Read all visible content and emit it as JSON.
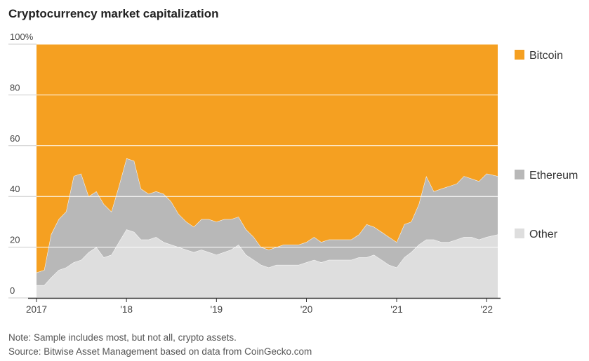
{
  "title": "Cryptocurrency market capitalization",
  "note": "Note: Sample includes most, but not all, crypto assets.",
  "source": "Source: Bitwise Asset Management based on data from CoinGecko.com",
  "colors": {
    "bitcoin": "#f5a021",
    "ethereum": "#b8b8b8",
    "other": "#dedede",
    "axis": "#333333",
    "grid": "#ffffff"
  },
  "chart_data": {
    "type": "area",
    "stacked": true,
    "percent": true,
    "ylim": [
      0,
      100
    ],
    "yticks": [
      0,
      20,
      40,
      60,
      80,
      100
    ],
    "ytick_labels": [
      "0",
      "20",
      "40",
      "60",
      "80",
      "100%"
    ],
    "xlim": [
      "2017-01-01",
      "2022-02-15"
    ],
    "xticks": [
      "2017-01-01",
      "2018-01-01",
      "2019-01-01",
      "2020-01-01",
      "2021-01-01",
      "2022-01-01"
    ],
    "xtick_labels": [
      "2017",
      "'18",
      "'19",
      "'20",
      "'21",
      "'22"
    ],
    "legend_placement": "right",
    "x": [
      "2017-01",
      "2017-02",
      "2017-03",
      "2017-04",
      "2017-05",
      "2017-06",
      "2017-07",
      "2017-08",
      "2017-09",
      "2017-10",
      "2017-11",
      "2017-12",
      "2018-01",
      "2018-02",
      "2018-03",
      "2018-04",
      "2018-05",
      "2018-06",
      "2018-07",
      "2018-08",
      "2018-09",
      "2018-10",
      "2018-11",
      "2018-12",
      "2019-01",
      "2019-02",
      "2019-03",
      "2019-04",
      "2019-05",
      "2019-06",
      "2019-07",
      "2019-08",
      "2019-09",
      "2019-10",
      "2019-11",
      "2019-12",
      "2020-01",
      "2020-02",
      "2020-03",
      "2020-04",
      "2020-05",
      "2020-06",
      "2020-07",
      "2020-08",
      "2020-09",
      "2020-10",
      "2020-11",
      "2020-12",
      "2021-01",
      "2021-02",
      "2021-03",
      "2021-04",
      "2021-05",
      "2021-06",
      "2021-07",
      "2021-08",
      "2021-09",
      "2021-10",
      "2021-11",
      "2021-12",
      "2022-01",
      "2022-02"
    ],
    "series": [
      {
        "name": "Other",
        "values": [
          5,
          5,
          8,
          11,
          12,
          14,
          15,
          18,
          20,
          16,
          17,
          22,
          27,
          26,
          23,
          23,
          24,
          22,
          21,
          20,
          19,
          18,
          19,
          18,
          17,
          18,
          19,
          21,
          17,
          15,
          13,
          12,
          13,
          13,
          13,
          13,
          14,
          15,
          14,
          15,
          15,
          15,
          15,
          16,
          16,
          17,
          15,
          13,
          12,
          16,
          18,
          21,
          23,
          23,
          22,
          22,
          23,
          24,
          24,
          23,
          24,
          25
        ]
      },
      {
        "name": "Ethereum",
        "values": [
          5,
          6,
          17,
          20,
          22,
          34,
          34,
          22,
          22,
          21,
          17,
          22,
          28,
          28,
          20,
          18,
          18,
          19,
          17,
          13,
          11,
          10,
          12,
          13,
          13,
          13,
          12,
          11,
          10,
          9,
          7,
          7,
          7,
          8,
          8,
          8,
          8,
          9,
          8,
          8,
          8,
          8,
          8,
          9,
          13,
          11,
          11,
          11,
          10,
          13,
          12,
          16,
          25,
          19,
          21,
          22,
          22,
          24,
          23,
          23,
          25,
          23
        ]
      },
      {
        "name": "Bitcoin",
        "values": [
          90,
          89,
          75,
          69,
          66,
          52,
          51,
          60,
          58,
          63,
          66,
          56,
          45,
          46,
          57,
          59,
          58,
          59,
          62,
          67,
          70,
          72,
          69,
          69,
          70,
          69,
          69,
          68,
          73,
          76,
          80,
          81,
          80,
          79,
          79,
          79,
          78,
          76,
          78,
          77,
          77,
          77,
          77,
          75,
          71,
          72,
          74,
          76,
          78,
          71,
          70,
          63,
          52,
          58,
          57,
          56,
          55,
          52,
          53,
          54,
          51,
          52
        ]
      }
    ]
  }
}
